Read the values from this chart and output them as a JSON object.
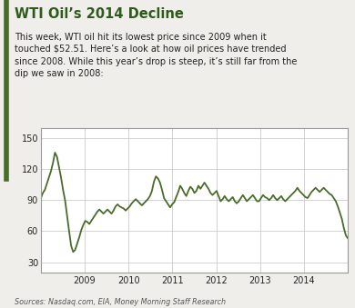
{
  "title": "WTI Oil’s 2014 Decline",
  "subtitle": "This week, WTI oil hit its lowest price since 2009 when it\ntouched $52.51. Here’s a look at how oil prices have trended\nsince 2008. While this year’s drop is steep, it’s still far from the\ndip we saw in 2008:",
  "source_text": "Sources: Nasdaq.com, EIA, Money Morning Staff Research",
  "line_color": "#4a6b2a",
  "background_color": "#f0eeea",
  "plot_bg_color": "#ffffff",
  "title_color": "#2e5a1c",
  "text_color": "#222222",
  "border_color": "#4a6b2a",
  "ylim": [
    20,
    160
  ],
  "yticks": [
    30,
    60,
    90,
    120,
    150
  ],
  "x_labels": [
    "2009",
    "2010",
    "2011",
    "2012",
    "2013",
    "2014"
  ],
  "prices": [
    92,
    97,
    100,
    106,
    112,
    118,
    126,
    136,
    132,
    122,
    112,
    100,
    90,
    75,
    60,
    46,
    40,
    42,
    48,
    54,
    61,
    66,
    70,
    69,
    67,
    70,
    73,
    76,
    79,
    81,
    79,
    77,
    79,
    81,
    79,
    77,
    80,
    84,
    86,
    84,
    83,
    82,
    80,
    82,
    84,
    87,
    89,
    91,
    89,
    87,
    85,
    87,
    89,
    91,
    94,
    99,
    108,
    113,
    111,
    107,
    100,
    92,
    89,
    86,
    83,
    86,
    88,
    93,
    98,
    104,
    101,
    97,
    94,
    99,
    103,
    101,
    97,
    99,
    104,
    101,
    104,
    107,
    104,
    101,
    97,
    95,
    97,
    99,
    94,
    89,
    91,
    94,
    91,
    89,
    91,
    93,
    89,
    87,
    89,
    92,
    95,
    92,
    89,
    91,
    93,
    95,
    92,
    89,
    89,
    92,
    95,
    93,
    92,
    90,
    92,
    95,
    92,
    90,
    92,
    94,
    91,
    89,
    91,
    93,
    95,
    97,
    99,
    102,
    99,
    97,
    95,
    93,
    92,
    95,
    98,
    100,
    102,
    100,
    98,
    100,
    102,
    100,
    98,
    96,
    95,
    92,
    89,
    84,
    78,
    72,
    63,
    56,
    53
  ]
}
